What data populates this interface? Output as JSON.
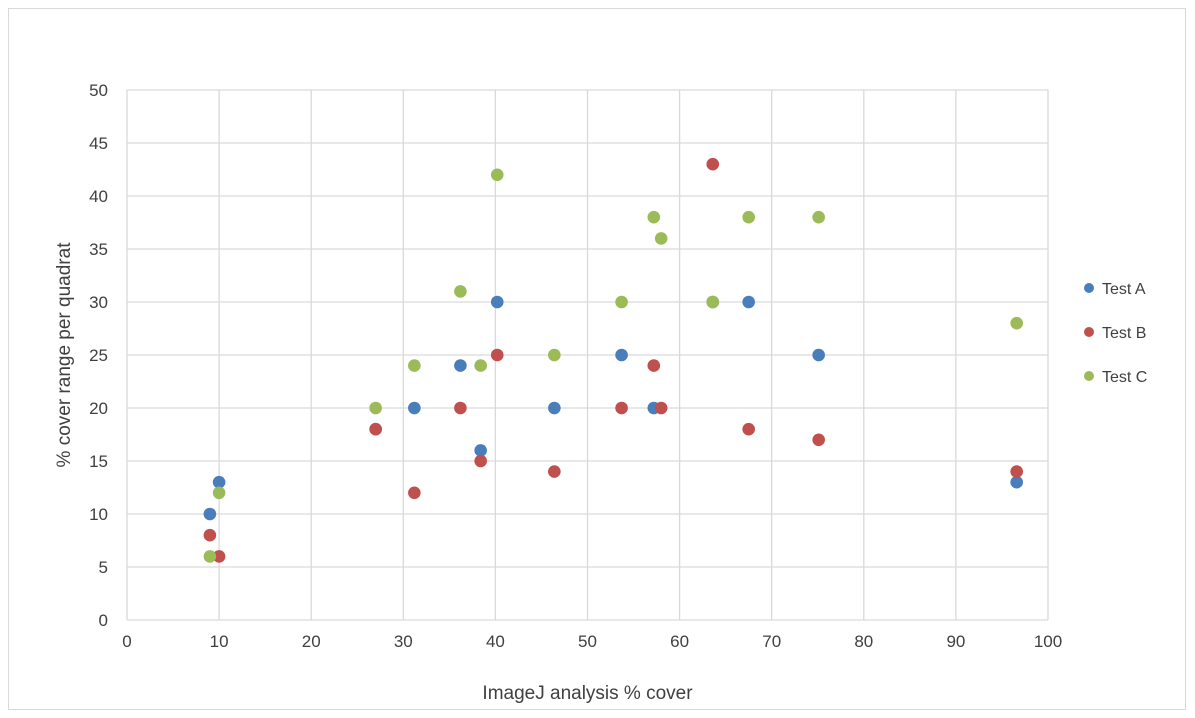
{
  "chart_data": {
    "type": "scatter",
    "title": "",
    "xlabel": "ImageJ analysis % cover",
    "ylabel": "% cover range per quadrat",
    "xlim": [
      0,
      100
    ],
    "ylim": [
      0,
      50
    ],
    "xticks": [
      0,
      10,
      20,
      30,
      40,
      50,
      60,
      70,
      80,
      90,
      100
    ],
    "yticks": [
      0,
      5,
      10,
      15,
      20,
      25,
      30,
      35,
      40,
      45,
      50
    ],
    "grid": true,
    "legend_position": "right",
    "series": [
      {
        "name": "Test A",
        "color": "#4a7ebb",
        "points": [
          [
            9,
            10
          ],
          [
            10,
            13
          ],
          [
            27,
            18
          ],
          [
            31.2,
            20
          ],
          [
            36.2,
            24
          ],
          [
            38.4,
            16
          ],
          [
            40.2,
            30
          ],
          [
            46.4,
            20
          ],
          [
            53.7,
            25
          ],
          [
            57.2,
            20
          ],
          [
            63.6,
            30
          ],
          [
            67.5,
            30
          ],
          [
            75.1,
            25
          ],
          [
            96.6,
            13
          ]
        ]
      },
      {
        "name": "Test B",
        "color": "#c0504d",
        "points": [
          [
            9,
            8
          ],
          [
            10,
            6
          ],
          [
            27,
            18
          ],
          [
            31.2,
            12
          ],
          [
            36.2,
            20
          ],
          [
            38.4,
            15
          ],
          [
            40.2,
            25
          ],
          [
            46.4,
            14
          ],
          [
            53.7,
            20
          ],
          [
            57.2,
            24
          ],
          [
            58,
            20
          ],
          [
            63.6,
            43
          ],
          [
            67.5,
            18
          ],
          [
            75.1,
            17
          ],
          [
            96.6,
            14
          ]
        ]
      },
      {
        "name": "Test C",
        "color": "#9bbb59",
        "points": [
          [
            9,
            6
          ],
          [
            10,
            12
          ],
          [
            27,
            20
          ],
          [
            31.2,
            24
          ],
          [
            36.2,
            31
          ],
          [
            38.4,
            24
          ],
          [
            40.2,
            42
          ],
          [
            46.4,
            25
          ],
          [
            53.7,
            30
          ],
          [
            57.2,
            38
          ],
          [
            58,
            36
          ],
          [
            63.6,
            30
          ],
          [
            67.5,
            38
          ],
          [
            75.1,
            38
          ],
          [
            96.6,
            28
          ]
        ]
      }
    ]
  }
}
